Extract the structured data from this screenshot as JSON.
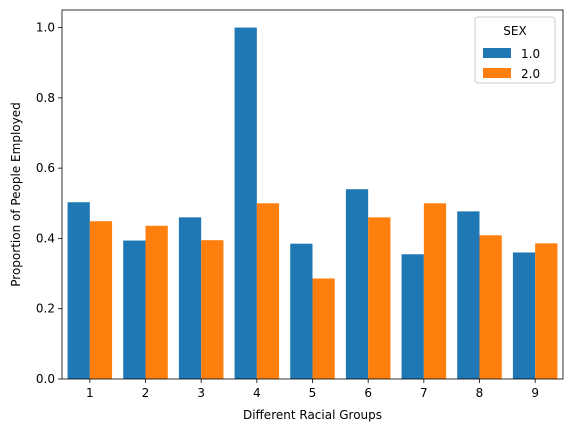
{
  "chart_data": {
    "type": "bar",
    "categories": [
      "1",
      "2",
      "3",
      "4",
      "5",
      "6",
      "7",
      "8",
      "9"
    ],
    "series": [
      {
        "name": "1.0",
        "color": "#1f77b4",
        "values": [
          0.503,
          0.394,
          0.46,
          1.0,
          0.385,
          0.54,
          0.355,
          0.477,
          0.36
        ]
      },
      {
        "name": "2.0",
        "color": "#ff7f0e",
        "values": [
          0.449,
          0.436,
          0.395,
          0.5,
          0.286,
          0.46,
          0.5,
          0.409,
          0.386
        ]
      }
    ],
    "xlabel": "Different Racial Groups",
    "ylabel": "Proportion of People Employed",
    "ylim": [
      0,
      1.05
    ],
    "yticks": [
      0.0,
      0.2,
      0.4,
      0.6,
      0.8,
      1.0
    ],
    "ytick_labels": [
      "0.0",
      "0.2",
      "0.4",
      "0.6",
      "0.8",
      "1.0"
    ],
    "legend": {
      "title": "SEX",
      "placement": "top-right"
    },
    "grid": false
  }
}
